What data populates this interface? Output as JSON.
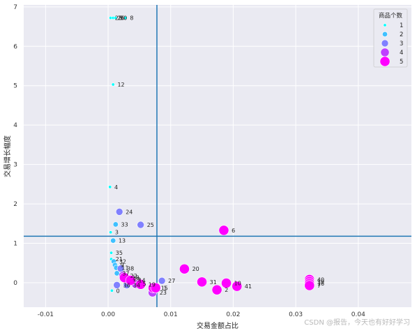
{
  "chart_data": {
    "type": "scatter",
    "xlabel": "交易金额占比",
    "ylabel": "交易增长幅度",
    "xlim": [
      -0.0135,
      0.0485
    ],
    "ylim": [
      -0.62,
      7.05
    ],
    "xticks": [
      -0.01,
      0.0,
      0.01,
      0.02,
      0.03,
      0.04
    ],
    "xtick_labels": [
      "-0.01",
      "0.00",
      "0.01",
      "0.02",
      "0.03",
      "0.04"
    ],
    "yticks": [
      0,
      1,
      2,
      3,
      4,
      5,
      6,
      7
    ],
    "ytick_labels": [
      "0",
      "1",
      "2",
      "3",
      "4",
      "5",
      "6",
      "7"
    ],
    "grid": true,
    "reference_lines": {
      "vertical_x": 0.0078,
      "horizontal_y": 1.18,
      "color": "#1f77b4"
    },
    "legend": {
      "title": "商品个数",
      "placement": "top-right",
      "entries": [
        {
          "label": "1",
          "size": 1,
          "color": "#00ffff"
        },
        {
          "label": "2",
          "size": 2,
          "color": "#3fc0ff"
        },
        {
          "label": "3",
          "size": 3,
          "color": "#8080ff"
        },
        {
          "label": "4",
          "size": 4,
          "color": "#bf40ff"
        },
        {
          "label": "5",
          "size": 5,
          "color": "#ff00ff"
        }
      ]
    },
    "points": [
      {
        "label": "28",
        "x": 0.0004,
        "y": 6.72,
        "size": 1
      },
      {
        "label": "26",
        "x": 0.0008,
        "y": 6.72,
        "size": 1
      },
      {
        "label": "30",
        "x": 0.0012,
        "y": 6.72,
        "size": 1
      },
      {
        "label": "8",
        "x": 0.0028,
        "y": 6.72,
        "size": 1
      },
      {
        "label": "12",
        "x": 0.0008,
        "y": 5.03,
        "size": 1
      },
      {
        "label": "4",
        "x": 0.0003,
        "y": 2.43,
        "size": 1
      },
      {
        "label": "24",
        "x": 0.0018,
        "y": 1.8,
        "size": 3
      },
      {
        "label": "33",
        "x": 0.0012,
        "y": 1.48,
        "size": 2
      },
      {
        "label": "25",
        "x": 0.0052,
        "y": 1.47,
        "size": 3
      },
      {
        "label": "6",
        "x": 0.0185,
        "y": 1.33,
        "size": 5
      },
      {
        "label": "3",
        "x": 0.0004,
        "y": 1.28,
        "size": 1
      },
      {
        "label": "13",
        "x": 0.0008,
        "y": 1.07,
        "size": 2
      },
      {
        "label": "35",
        "x": 0.0005,
        "y": 0.76,
        "size": 1
      },
      {
        "label": "21",
        "x": 0.0005,
        "y": 0.6,
        "size": 1
      },
      {
        "label": "32",
        "x": 0.0009,
        "y": 0.54,
        "size": 2
      },
      {
        "label": "9",
        "x": 0.0011,
        "y": 0.45,
        "size": 2
      },
      {
        "label": "11",
        "x": 0.0013,
        "y": 0.38,
        "size": 2
      },
      {
        "label": "38",
        "x": 0.002,
        "y": 0.36,
        "size": 3
      },
      {
        "label": "20",
        "x": 0.0122,
        "y": 0.35,
        "size": 5
      },
      {
        "label": "37",
        "x": 0.0014,
        "y": 0.24,
        "size": 2
      },
      {
        "label": "22",
        "x": 0.0024,
        "y": 0.18,
        "size": 4
      },
      {
        "label": "18",
        "x": 0.0026,
        "y": 0.13,
        "size": 5
      },
      {
        "label": "29",
        "x": 0.0029,
        "y": 0.09,
        "size": 4
      },
      {
        "label": "14",
        "x": 0.0036,
        "y": 0.06,
        "size": 5
      },
      {
        "label": "27",
        "x": 0.0086,
        "y": 0.05,
        "size": 3
      },
      {
        "label": "31",
        "x": 0.015,
        "y": 0.02,
        "size": 5
      },
      {
        "label": "40",
        "x": 0.0322,
        "y": 0.08,
        "size": 5
      },
      {
        "label": "39",
        "x": 0.0322,
        "y": 0.03,
        "size": 5
      },
      {
        "label": "16",
        "x": 0.0322,
        "y": -0.02,
        "size": 5
      },
      {
        "label": "7",
        "x": 0.0322,
        "y": -0.07,
        "size": 5
      },
      {
        "label": "10",
        "x": 0.0189,
        "y": -0.01,
        "size": 5
      },
      {
        "label": "41",
        "x": 0.0206,
        "y": -0.09,
        "size": 5
      },
      {
        "label": "19",
        "x": 0.0052,
        "y": -0.04,
        "size": 5
      },
      {
        "label": "5",
        "x": 0.0044,
        "y": -0.03,
        "size": 4
      },
      {
        "label": "34",
        "x": 0.003,
        "y": -0.06,
        "size": 3
      },
      {
        "label": "36",
        "x": 0.0014,
        "y": -0.06,
        "size": 3
      },
      {
        "label": "15",
        "x": 0.0072,
        "y": -0.13,
        "size": 5
      },
      {
        "label": "1",
        "x": 0.0076,
        "y": -0.13,
        "size": 5
      },
      {
        "label": "2",
        "x": 0.0174,
        "y": -0.18,
        "size": 5
      },
      {
        "label": "23",
        "x": 0.0071,
        "y": -0.25,
        "size": 4
      },
      {
        "label": "0",
        "x": 0.0006,
        "y": -0.2,
        "size": 1
      }
    ]
  },
  "watermark": "CSDN @报告，今天也有好好学习"
}
